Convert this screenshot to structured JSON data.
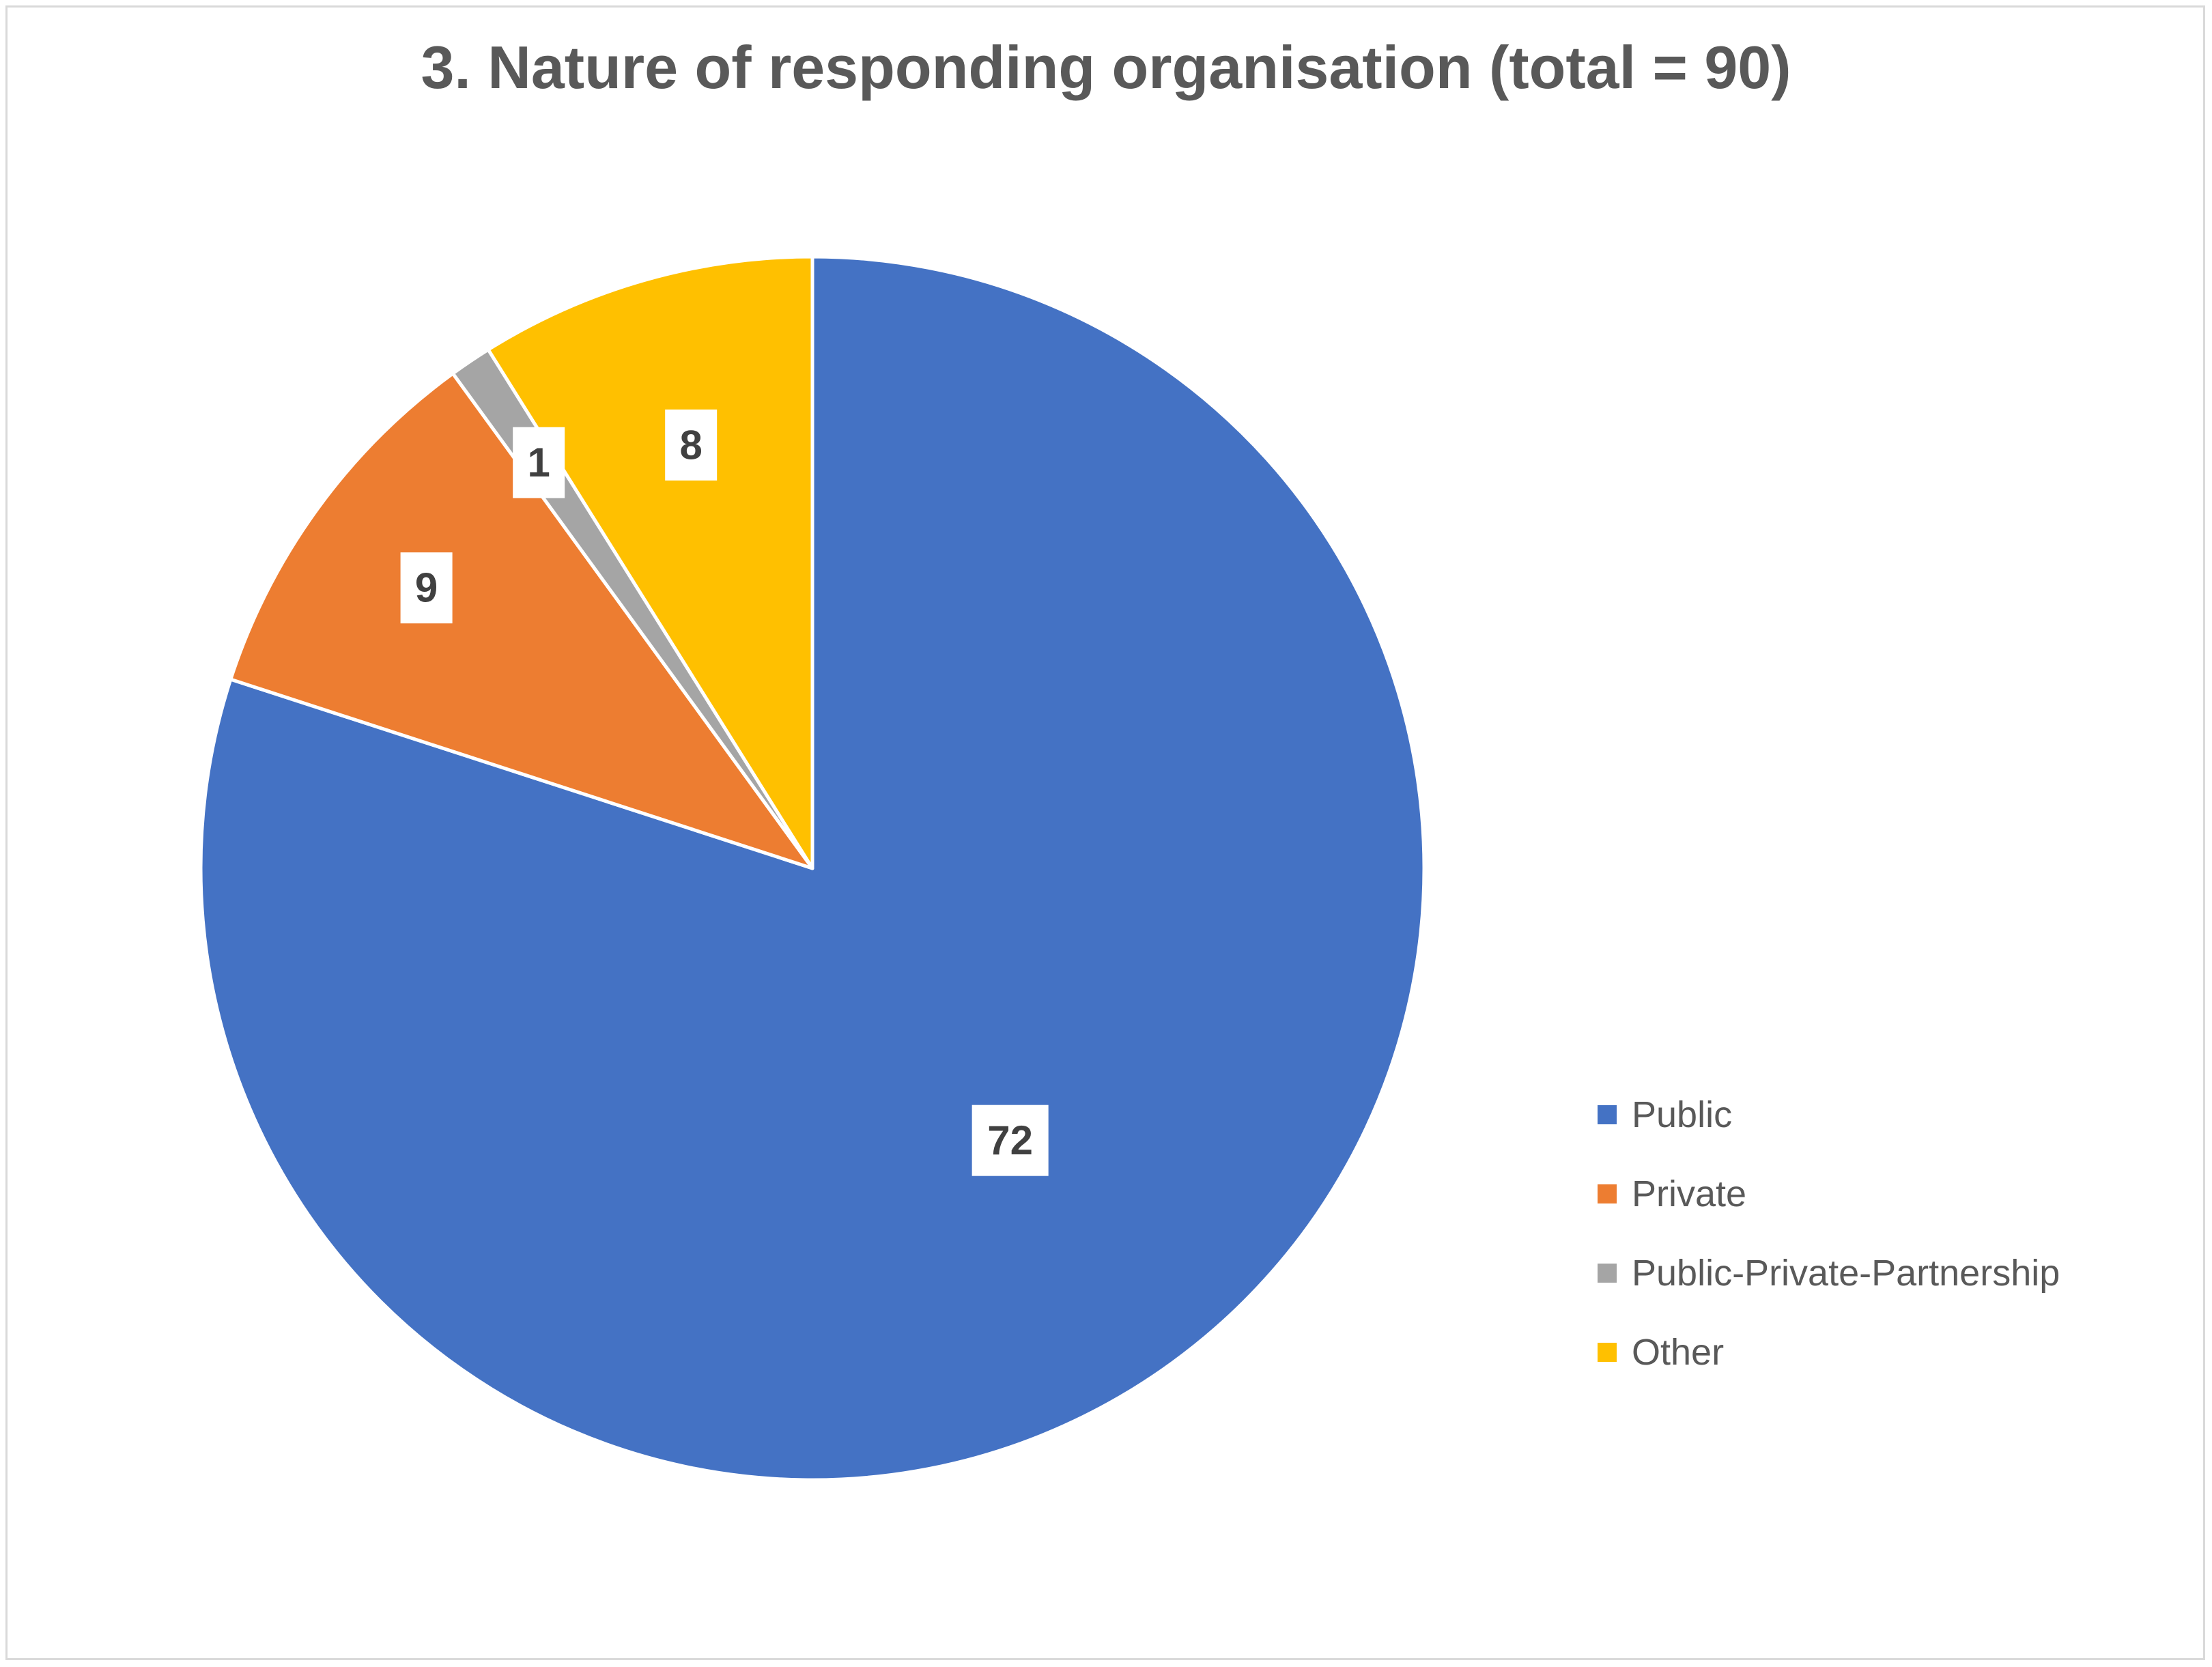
{
  "chart_data": {
    "type": "pie",
    "title": "3. Nature of responding organisation (total = 90)",
    "categories": [
      "Public",
      "Private",
      "Public-Private-Partnership",
      "Other"
    ],
    "values": [
      72,
      9,
      1,
      8
    ],
    "colors": [
      "#4472C4",
      "#ED7D31",
      "#A5A5A5",
      "#FFC000"
    ],
    "data_labels": [
      "72",
      "9",
      "1",
      "8"
    ],
    "start_angle_deg": 0,
    "direction": "clockwise",
    "legend_position": "right"
  }
}
